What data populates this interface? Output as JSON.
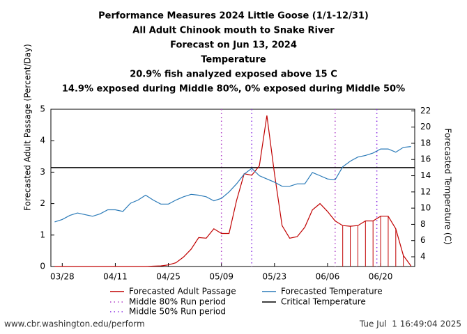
{
  "chart_data": {
    "type": "line",
    "title": [
      "Performance Measures 2024 Little Goose (1/1-12/31)",
      "All Adult Chinook mouth to Snake River",
      "Forecast on Jun 13, 2024",
      "Temperature",
      "20.9% fish analyzed exposed above 15 C",
      "14.9% exposed during Middle 80%, 0% exposed during Middle 50%"
    ],
    "ylabel": "Forecasted Adult Passage (Percent/Day)",
    "y2label": "Forecasted Temperature (C)",
    "x": [
      "03/26",
      "03/28",
      "03/30",
      "04/01",
      "04/03",
      "04/05",
      "04/07",
      "04/09",
      "04/11",
      "04/13",
      "04/15",
      "04/17",
      "04/19",
      "04/21",
      "04/23",
      "04/25",
      "04/27",
      "04/29",
      "05/01",
      "05/03",
      "05/05",
      "05/07",
      "05/09",
      "05/11",
      "05/13",
      "05/15",
      "05/17",
      "05/19",
      "05/21",
      "05/23",
      "05/25",
      "05/27",
      "05/29",
      "05/31",
      "06/02",
      "06/04",
      "06/06",
      "06/08",
      "06/10",
      "06/12",
      "06/14",
      "06/16",
      "06/18",
      "06/20",
      "06/22",
      "06/24",
      "06/26",
      "06/28"
    ],
    "xlim": [
      "03/25",
      "06/29"
    ],
    "xticks": [
      "03/28",
      "04/11",
      "04/25",
      "05/09",
      "05/23",
      "06/06",
      "06/20"
    ],
    "series": [
      {
        "name": "Forecasted Adult Passage",
        "color": "#c00000",
        "axis": "y",
        "values": [
          0,
          0,
          0,
          0,
          0,
          0,
          0,
          0,
          0,
          0,
          0,
          0,
          0,
          0.01,
          0.02,
          0.05,
          0.12,
          0.3,
          0.55,
          0.92,
          0.9,
          1.2,
          1.05,
          1.05,
          2.1,
          2.95,
          2.9,
          3.2,
          4.8,
          2.95,
          1.3,
          0.9,
          0.95,
          1.25,
          1.8,
          2.0,
          1.75,
          1.45,
          1.3,
          1.28,
          1.3,
          1.45,
          1.45,
          1.6,
          1.6,
          1.2,
          0.35,
          0.02
        ]
      },
      {
        "name": "Forecasted Temperature",
        "color": "#2a7ab8",
        "axis": "y2",
        "values": [
          8.3,
          8.6,
          9.1,
          9.4,
          9.2,
          9.0,
          9.3,
          9.8,
          9.8,
          9.6,
          10.6,
          11.0,
          11.6,
          11.0,
          10.5,
          10.5,
          11.0,
          11.4,
          11.7,
          11.6,
          11.4,
          10.9,
          11.2,
          12.0,
          13.0,
          14.2,
          14.9,
          14.0,
          13.6,
          13.2,
          12.7,
          12.7,
          13.0,
          13.0,
          14.4,
          14.0,
          13.6,
          13.5,
          15.1,
          15.8,
          16.3,
          16.5,
          16.8,
          17.3,
          17.3,
          16.9,
          17.5,
          17.6
        ]
      }
    ],
    "reference_lines": [
      {
        "name": "Critical Temperature",
        "value": 15,
        "axis": "y2",
        "color": "#000000"
      }
    ],
    "run_periods": [
      {
        "name": "Middle 80% Run period",
        "dates": [
          "05/09",
          "06/08"
        ],
        "color": "#b040c8"
      },
      {
        "name": "Middle 50% Run period",
        "dates": [
          "05/17",
          "06/19"
        ],
        "color": "#8a2be2"
      }
    ],
    "ylim": [
      0,
      5
    ],
    "yticks": [
      0,
      1,
      2,
      3,
      4,
      5
    ],
    "y2lim": [
      2.8,
      22.2
    ],
    "y2ticks": [
      4,
      6,
      8,
      10,
      12,
      14,
      16,
      18,
      20,
      22
    ],
    "footer_left": "www.cbr.washington.edu/perform",
    "footer_right": "Tue Jul  1 16:49:04 2025"
  }
}
